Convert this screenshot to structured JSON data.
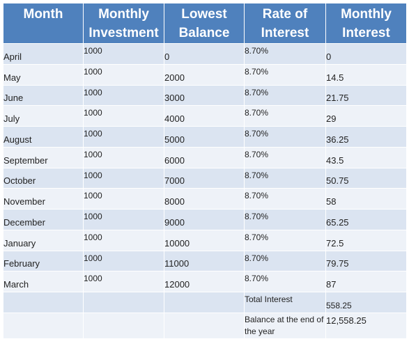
{
  "table": {
    "headers": [
      [
        "Month"
      ],
      [
        "Monthly",
        "Investment"
      ],
      [
        "Lowest",
        "Balance"
      ],
      [
        "Rate of",
        "Interest"
      ],
      [
        "Monthly",
        "Interest"
      ]
    ],
    "rows": [
      {
        "month": "April",
        "investment": "1000",
        "balance": "0",
        "rate": "8.70%",
        "interest": "0"
      },
      {
        "month": "May",
        "investment": "1000",
        "balance": "2000",
        "rate": "8.70%",
        "interest": "14.5"
      },
      {
        "month": "June",
        "investment": "1000",
        "balance": "3000",
        "rate": "8.70%",
        "interest": "21.75"
      },
      {
        "month": "July",
        "investment": "1000",
        "balance": "4000",
        "rate": "8.70%",
        "interest": "29"
      },
      {
        "month": "August",
        "investment": "1000",
        "balance": "5000",
        "rate": "8.70%",
        "interest": "36.25"
      },
      {
        "month": "September",
        "investment": "1000",
        "balance": "6000",
        "rate": "8.70%",
        "interest": "43.5"
      },
      {
        "month": "October",
        "investment": "1000",
        "balance": "7000",
        "rate": "8.70%",
        "interest": "50.75"
      },
      {
        "month": "November",
        "investment": "1000",
        "balance": "8000",
        "rate": "8.70%",
        "interest": "58"
      },
      {
        "month": "December",
        "investment": "1000",
        "balance": "9000",
        "rate": "8.70%",
        "interest": "65.25"
      },
      {
        "month": "January",
        "investment": "1000",
        "balance": "10000",
        "rate": "8.70%",
        "interest": "72.5"
      },
      {
        "month": "February",
        "investment": "1000",
        "balance": "11000",
        "rate": "8.70%",
        "interest": "79.75"
      },
      {
        "month": "March",
        "investment": "1000",
        "balance": "12000",
        "rate": "8.70%",
        "interest": "87"
      }
    ],
    "total_interest": {
      "label": "Total Interest",
      "value": "558.25"
    },
    "year_end_balance": {
      "label": "Balance at the end of the year",
      "value": "12,558.25"
    }
  },
  "colors": {
    "header_bg": "#4f81bd",
    "row_dark": "#dbe4f1",
    "row_light": "#eef2f8"
  }
}
